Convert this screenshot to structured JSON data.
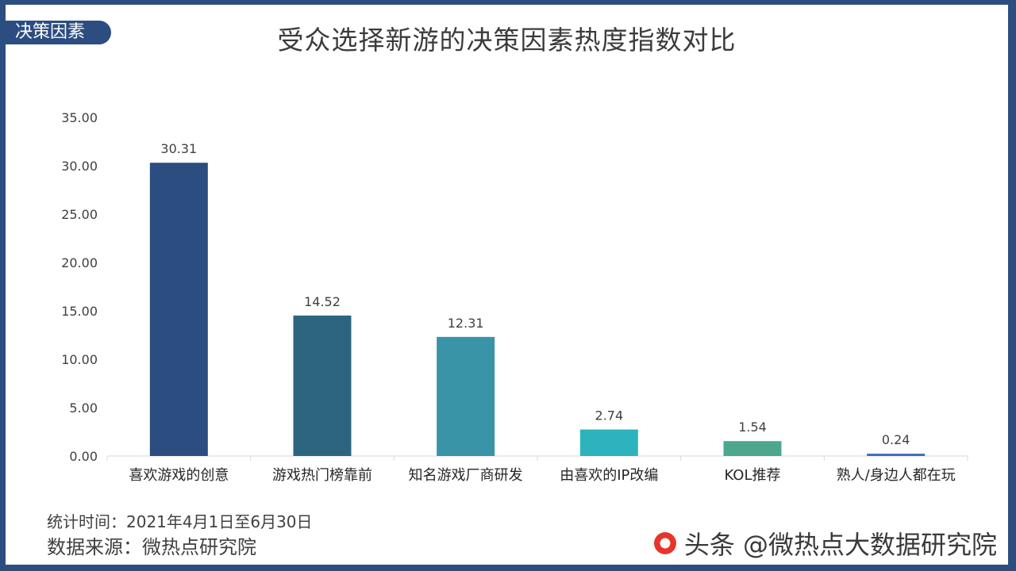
{
  "section_tag": "决策因素",
  "chart_data": {
    "type": "bar",
    "title": "受众选择新游的决策因素热度指数对比",
    "categories": [
      "喜欢游戏的创意",
      "游戏热门榜靠前",
      "知名游戏厂商研发",
      "由喜欢的IP改编",
      "KOL推荐",
      "熟人/身边人都在玩"
    ],
    "values": [
      30.31,
      14.52,
      12.31,
      2.74,
      1.54,
      0.24
    ],
    "value_labels": [
      "30.31",
      "14.52",
      "12.31",
      "2.74",
      "1.54",
      "0.24"
    ],
    "colors": [
      "#2c4d80",
      "#2d6580",
      "#3894a6",
      "#2db3bd",
      "#4ca78d",
      "#3d6ac2"
    ],
    "yticks": [
      "0.00",
      "5.00",
      "10.00",
      "15.00",
      "20.00",
      "25.00",
      "30.00",
      "35.00"
    ],
    "ylim": [
      0,
      35
    ],
    "grid": false,
    "legend": "none"
  },
  "footer": {
    "period": "统计时间：2021年4月1日至6月30日",
    "source": "数据来源：微热点研究院"
  },
  "watermark": {
    "text": "头条 @微热点大数据研究院"
  }
}
